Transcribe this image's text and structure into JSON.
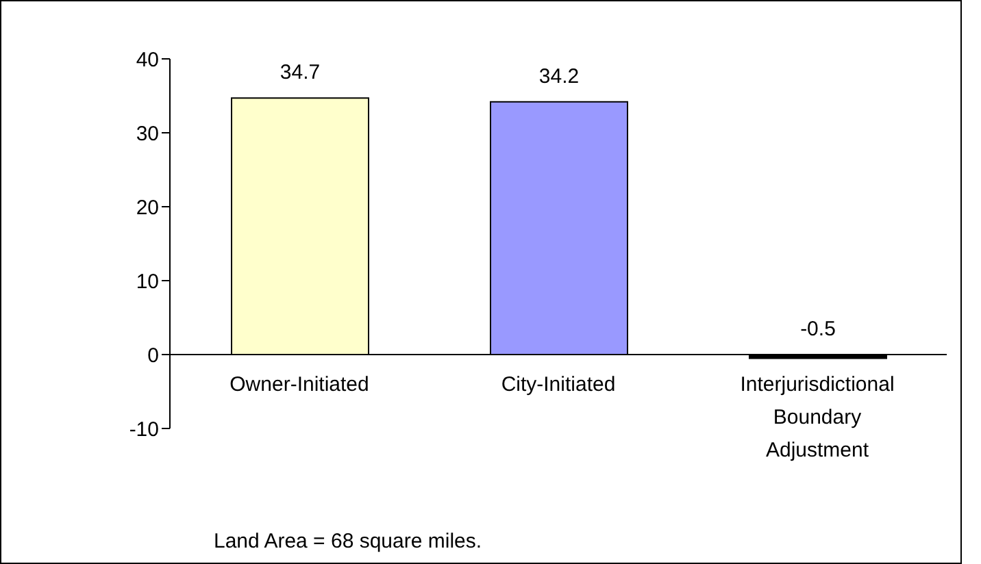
{
  "chart_data": {
    "type": "bar",
    "categories": [
      "Owner-Initiated",
      "City-Initiated",
      "Interjurisdictional Boundary Adjustment"
    ],
    "values": [
      34.7,
      34.2,
      -0.5
    ],
    "colors": [
      "#ffffcc",
      "#9999ff",
      "#000000"
    ],
    "ylim": [
      -10,
      40
    ],
    "yticks": [
      -10,
      0,
      10,
      20,
      30,
      40
    ],
    "data_labels": true,
    "annotations": [
      "Land Area = 68 square miles."
    ]
  }
}
